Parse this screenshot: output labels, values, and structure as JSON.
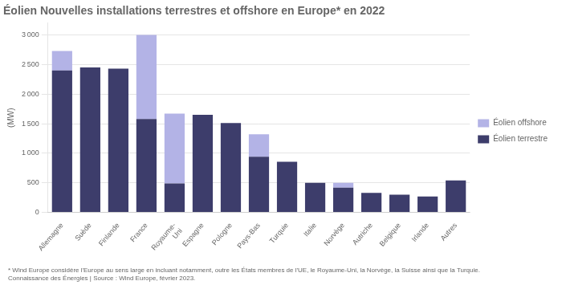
{
  "chart_data": {
    "type": "bar",
    "title": "Éolien Nouvelles installations terrestres et offshore en Europe* en 2022",
    "ylabel": "(MW)",
    "annotations": [
      "* Wind Europe considère l'Europe au sens large en incluant notamment, outre les États membres de l'UE, le Royaume-Uni, la Norvège, la Suisse ainsi que la Turquie.",
      "Connaissance des Énergies | Source : Wind Europe, février 2023."
    ],
    "categories": [
      "Allemagne",
      "Suède",
      "Finlande",
      "France",
      "Royaume-\nUni",
      "Espagne",
      "Pologne",
      "Pays-Bas",
      "Turquie",
      "Italie",
      "Norvège",
      "Autriche",
      "Belgique",
      "Irlande",
      "Autres"
    ],
    "series": [
      {
        "name": "Éolien terrestre",
        "color": "#3d3d6b",
        "values": [
          2400,
          2450,
          2430,
          1580,
          490,
          1650,
          1510,
          940,
          855,
          500,
          420,
          330,
          300,
          270,
          540
        ]
      },
      {
        "name": "Éolien offshore",
        "color": "#b3b3e6",
        "values": [
          330,
          0,
          0,
          1420,
          1180,
          0,
          0,
          380,
          0,
          0,
          80,
          0,
          0,
          0,
          0
        ]
      }
    ],
    "stacked": true,
    "ylim": [
      0,
      3200
    ],
    "yticks": [
      0,
      500,
      {
        "value": 1000,
        "label": "1 000"
      },
      {
        "value": 1500,
        "label": "1 500"
      },
      {
        "value": 2000,
        "label": "2 000"
      },
      {
        "value": 2500,
        "label": "2 500"
      },
      {
        "value": 3000,
        "label": "3 000"
      }
    ],
    "grid": true,
    "legend": "right"
  }
}
